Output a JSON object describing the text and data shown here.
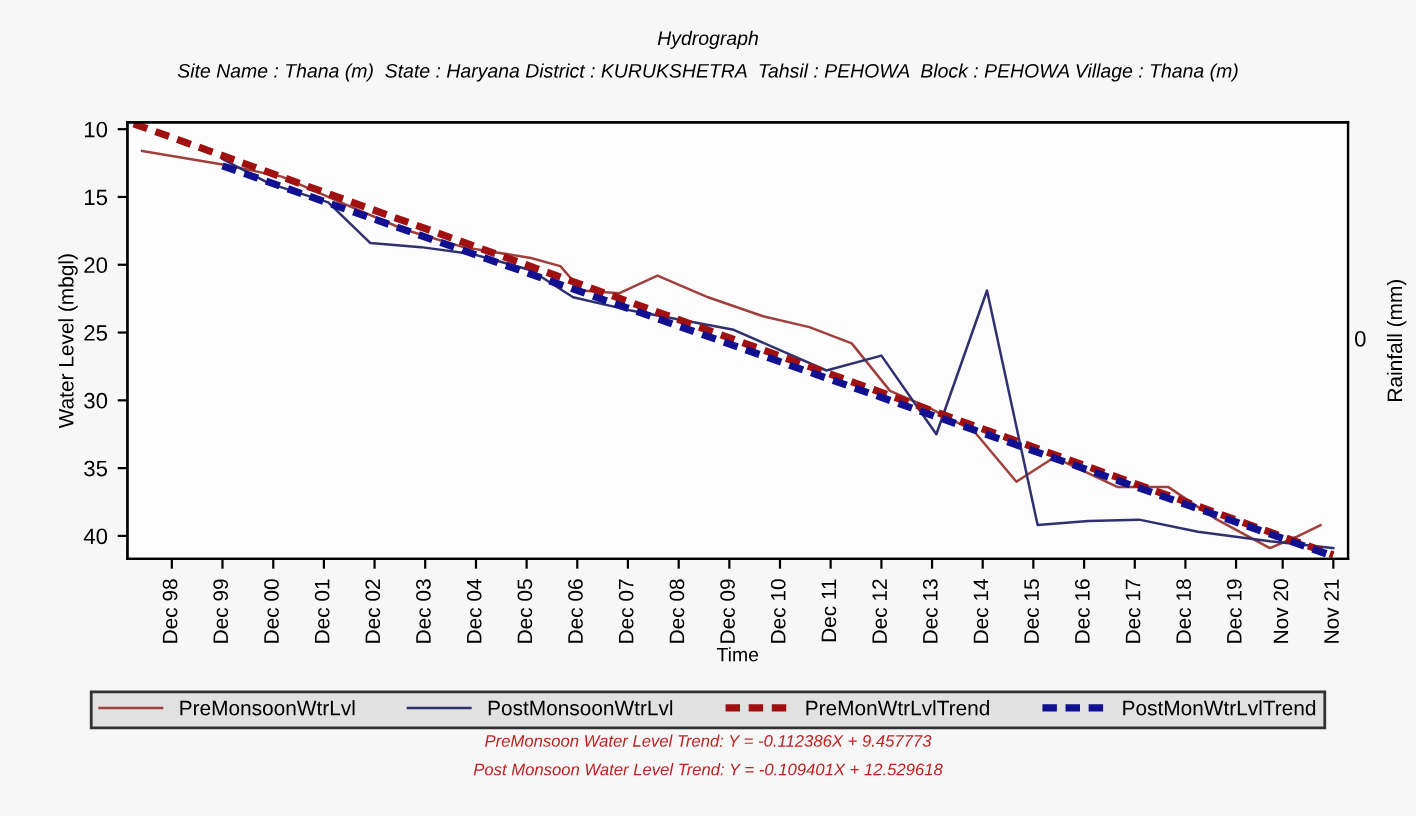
{
  "chart_data": {
    "type": "line",
    "title": "Hydrograph",
    "subtitle": "Site Name : Thana (m)  State : Haryana District : KURUKSHETRA  Tahsil : PEHOWA  Block : PEHOWA Village : Thana (m)",
    "xlabel": "Time",
    "ylabel": "Water Level (mbgl)",
    "y2label": "Rainfall (mm)",
    "xlim": [
      "1998-01-15",
      "2022-02-15"
    ],
    "ylim": [
      41.7,
      9.5
    ],
    "yticks": [
      10,
      15,
      20,
      25,
      30,
      35,
      40
    ],
    "xticks": [
      {
        "value": "1998-12-01",
        "label": "Dec 98"
      },
      {
        "value": "1999-12-01",
        "label": "Dec 99"
      },
      {
        "value": "2000-12-01",
        "label": "Dec 00"
      },
      {
        "value": "2001-12-01",
        "label": "Dec 01"
      },
      {
        "value": "2002-12-01",
        "label": "Dec 02"
      },
      {
        "value": "2003-12-01",
        "label": "Dec 03"
      },
      {
        "value": "2004-12-01",
        "label": "Dec 04"
      },
      {
        "value": "2005-12-01",
        "label": "Dec 05"
      },
      {
        "value": "2006-12-01",
        "label": "Dec 06"
      },
      {
        "value": "2007-12-01",
        "label": "Dec 07"
      },
      {
        "value": "2008-12-01",
        "label": "Dec 08"
      },
      {
        "value": "2009-12-01",
        "label": "Dec 09"
      },
      {
        "value": "2010-12-01",
        "label": "Dec 10"
      },
      {
        "value": "2011-12-01",
        "label": "Dec 11"
      },
      {
        "value": "2012-12-01",
        "label": "Dec 12"
      },
      {
        "value": "2013-12-01",
        "label": "Dec 13"
      },
      {
        "value": "2014-12-01",
        "label": "Dec 14"
      },
      {
        "value": "2015-12-01",
        "label": "Dec 15"
      },
      {
        "value": "2016-12-01",
        "label": "Dec 16"
      },
      {
        "value": "2017-12-01",
        "label": "Dec 17"
      },
      {
        "value": "2018-12-01",
        "label": "Dec 18"
      },
      {
        "value": "2019-12-01",
        "label": "Dec 19"
      },
      {
        "value": "2020-11-01",
        "label": "Nov 20"
      },
      {
        "value": "2021-11-01",
        "label": "Nov 21"
      }
    ],
    "grid": false,
    "legend": "bottom",
    "marker": "none",
    "series": [
      {
        "name": "PreMonsoonWtrLvl",
        "color": "#a0403c",
        "line_style": "solid",
        "x": [
          "1998-05",
          "1999-12",
          "2001-02",
          "2002-04",
          "2003-07",
          "2004-09",
          "2006-01",
          "2006-08",
          "2007-01",
          "2007-10",
          "2008-07",
          "2009-07",
          "2010-08",
          "2011-07",
          "2012-05",
          "2013-02",
          "2013-11",
          "2014-10",
          "2015-08",
          "2016-05",
          "2017-08",
          "2018-08",
          "2019-07",
          "2020-08",
          "2021-02",
          "2021-08"
        ],
        "values": [
          11.6,
          12.6,
          13.5,
          15.4,
          17.4,
          18.7,
          19.5,
          20.1,
          21.9,
          22.1,
          20.8,
          22.4,
          23.8,
          24.6,
          25.8,
          29.3,
          30.5,
          32.3,
          36.0,
          34.2,
          36.4,
          36.4,
          38.7,
          40.9,
          40.1,
          39.2
        ]
      },
      {
        "name": "PostMonsoonWtrLvl",
        "color": "#303070",
        "line_style": "solid",
        "x": [
          "1999-12",
          "2000-11",
          "2002-01",
          "2002-11",
          "2003-11",
          "2004-11",
          "2006-01",
          "2006-11",
          "2008-01",
          "2010-01",
          "2011-11",
          "2012-12",
          "2014-01",
          "2015-01",
          "2016-01",
          "2017-01",
          "2018-01",
          "2019-03",
          "2020-08",
          "2021-11"
        ],
        "values": [
          12.2,
          14.0,
          15.4,
          18.4,
          18.7,
          19.2,
          20.4,
          22.4,
          23.4,
          24.8,
          27.8,
          26.7,
          32.5,
          21.9,
          39.2,
          38.9,
          38.8,
          39.7,
          40.4,
          40.9
        ]
      },
      {
        "name": "PreMonWtrLvlTrend",
        "color": "#a01010",
        "line_style": "dashed",
        "x": [
          "1998-03",
          "2021-11"
        ],
        "values": [
          9.6,
          41.4
        ]
      },
      {
        "name": "PostMonWtrLvlTrend",
        "color": "#101090",
        "line_style": "dashed",
        "x": [
          "1999-12",
          "2021-11"
        ],
        "values": [
          12.7,
          41.5
        ]
      }
    ],
    "annotations": [
      "0",
      "PreMonsoon Water Level Trend: Y = -0.112386X + 9.457773",
      "Post Monsoon Water Level Trend: Y = -0.109401X + 12.529618"
    ]
  }
}
